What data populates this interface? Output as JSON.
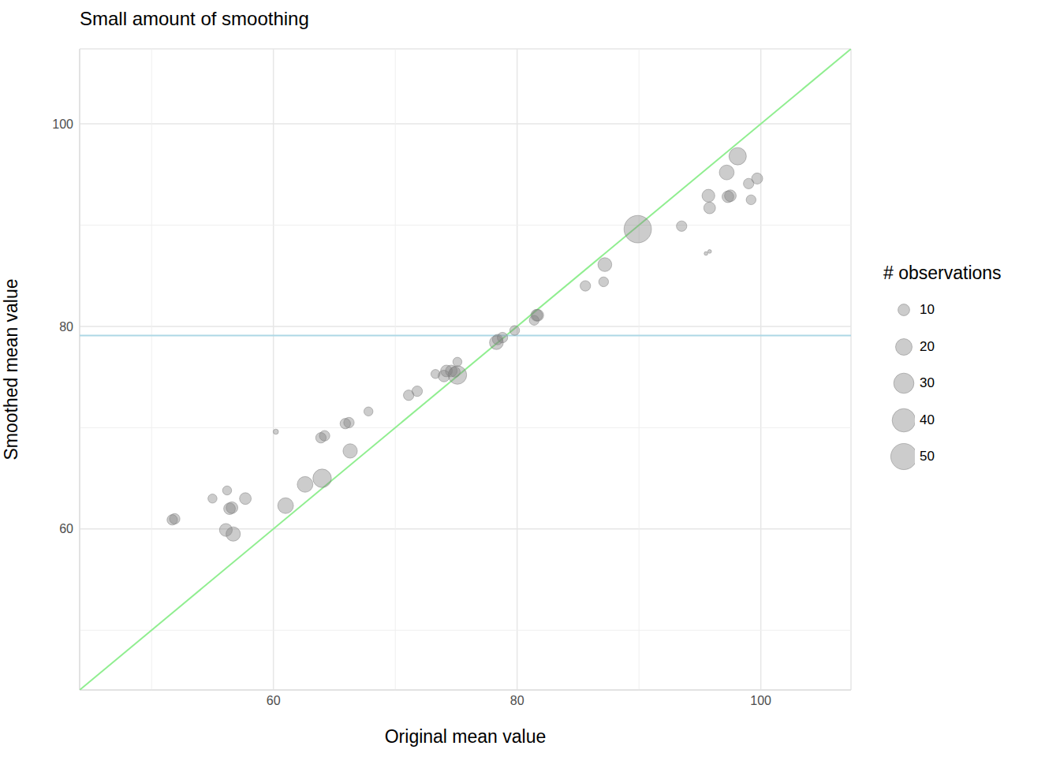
{
  "chart_data": {
    "type": "scatter",
    "title": "Small amount of smoothing",
    "xlabel": "Original mean value",
    "ylabel": "Smoothed mean value",
    "xlim": [
      44.1,
      107.4
    ],
    "ylim": [
      44.1,
      107.4
    ],
    "xticks": [
      60,
      80,
      100
    ],
    "yticks": [
      60,
      80,
      100
    ],
    "grid": true,
    "legend": "right",
    "size_legend": {
      "title": "# observations",
      "values": [
        10,
        20,
        30,
        40,
        50
      ]
    },
    "series": [
      {
        "type": "scatter",
        "color": "#7f7f7f",
        "x": [
          51.7,
          51.9,
          55.0,
          56.2,
          56.1,
          56.4,
          56.6,
          56.7,
          57.7,
          60.2,
          61.0,
          62.6,
          64.0,
          63.9,
          64.2,
          65.9,
          66.2,
          66.3,
          67.8,
          71.1,
          71.8,
          73.3,
          74.0,
          74.2,
          74.6,
          74.9,
          75.1,
          75.1,
          78.3,
          78.4,
          78.8,
          79.8,
          81.4,
          81.6,
          81.7,
          85.6,
          87.1,
          87.2,
          89.9,
          93.5,
          95.5,
          95.8,
          95.7,
          95.8,
          97.2,
          97.3,
          97.5,
          98.1,
          99.0,
          99.2,
          99.7
        ],
        "values": [
          60.9,
          61.0,
          63.0,
          63.8,
          59.9,
          62.0,
          62.1,
          59.5,
          63.0,
          69.6,
          62.3,
          64.4,
          65.0,
          69.0,
          69.2,
          70.4,
          70.5,
          67.7,
          71.6,
          73.2,
          73.6,
          75.3,
          75.1,
          75.6,
          75.6,
          75.5,
          76.5,
          75.2,
          78.4,
          78.7,
          78.9,
          79.6,
          80.6,
          81.1,
          81.1,
          84.0,
          84.4,
          86.1,
          89.6,
          89.9,
          87.2,
          87.4,
          92.9,
          91.7,
          95.2,
          92.8,
          92.9,
          96.8,
          94.1,
          92.5,
          94.6
        ],
        "size": [
          8,
          8,
          6,
          6,
          12,
          10,
          10,
          15,
          10,
          2,
          18,
          18,
          25,
          8,
          8,
          8,
          8,
          15,
          6,
          8,
          8,
          6,
          10,
          10,
          10,
          8,
          6,
          25,
          14,
          8,
          8,
          7,
          7,
          10,
          10,
          8,
          7,
          14,
          55,
          8,
          1,
          1,
          12,
          10,
          16,
          10,
          10,
          22,
          8,
          7,
          9
        ]
      },
      {
        "type": "line",
        "color": "#90ee90",
        "x": [
          44.1,
          107.4
        ],
        "values": [
          44.1,
          107.4
        ]
      },
      {
        "type": "line",
        "color": "#add8e6",
        "x": [
          44.1,
          107.4
        ],
        "values": [
          79.1,
          79.1
        ]
      }
    ]
  }
}
